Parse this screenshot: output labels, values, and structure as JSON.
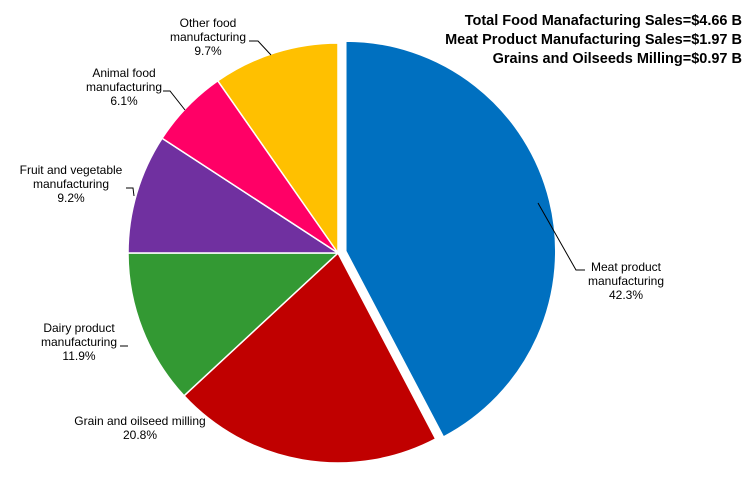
{
  "summary": {
    "lines": [
      "Total Food Manafacturing Sales=$4.66 B",
      "Meat Product Manufacturing Sales=$1.97 B",
      "Grains and Oilseeds Milling=$0.97 B"
    ]
  },
  "chart_data": {
    "type": "pie",
    "title": "",
    "start_angle_deg": 0,
    "direction": "clockwise",
    "exploded_slice": "meat",
    "slices": [
      {
        "id": "meat",
        "value": 42.3,
        "color": "#0070C0",
        "label_lines": [
          "Meat product",
          "manufacturing",
          "42.3%"
        ]
      },
      {
        "id": "grain",
        "value": 20.8,
        "color": "#C00000",
        "label_lines": [
          "Grain and oilseed milling",
          "20.8%"
        ]
      },
      {
        "id": "dairy",
        "value": 11.9,
        "color": "#339933",
        "label_lines": [
          "Dairy product",
          "manufacturing",
          "11.9%"
        ]
      },
      {
        "id": "fruit",
        "value": 9.2,
        "color": "#7030A0",
        "label_lines": [
          "Fruit and vegetable",
          "manufacturing",
          "9.2%"
        ]
      },
      {
        "id": "animal",
        "value": 6.1,
        "color": "#FF0066",
        "label_lines": [
          "Animal food",
          "manufacturing",
          "6.1%"
        ]
      },
      {
        "id": "other",
        "value": 9.7,
        "color": "#FFC000",
        "label_lines": [
          "Other food",
          "manufacturing",
          "9.7%"
        ]
      }
    ]
  }
}
